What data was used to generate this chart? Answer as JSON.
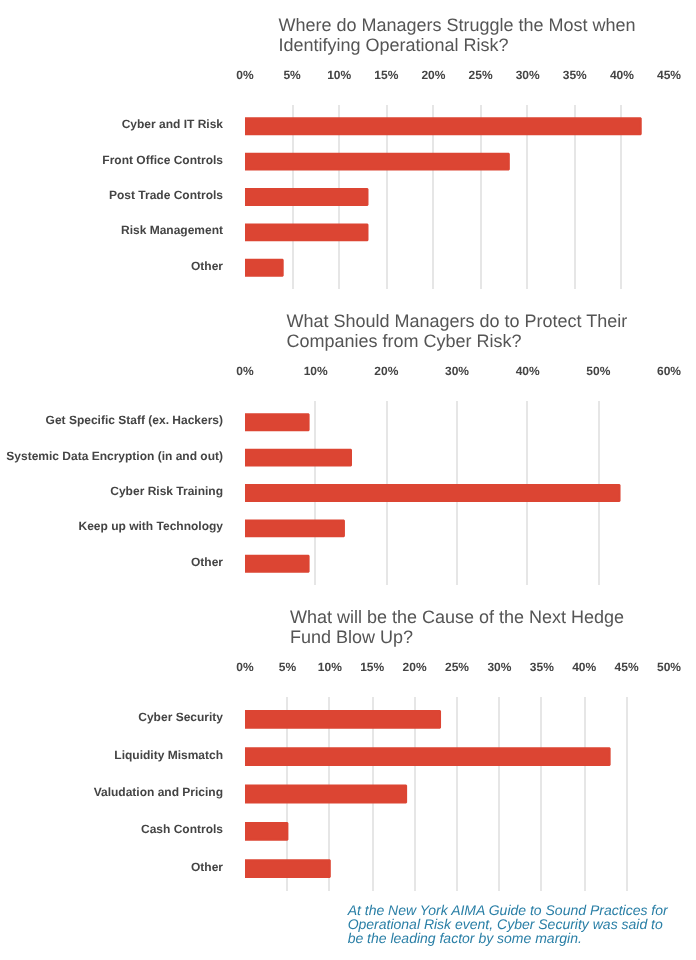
{
  "chart_data": [
    {
      "type": "bar",
      "orientation": "horizontal",
      "title": "Where do Managers Struggle the Most when Identifying Operational Risk?",
      "categories": [
        "Cyber and IT Risk",
        "Front Office Controls",
        "Post Trade Controls",
        "Risk Management",
        "Other"
      ],
      "values": [
        42,
        28,
        13,
        13,
        4
      ],
      "color": "#dc4533",
      "xlim": [
        0,
        45
      ],
      "xticks": [
        {
          "value": 0,
          "label": "0%"
        },
        {
          "value": 5,
          "label": "5%"
        },
        {
          "value": 10,
          "label": "10%"
        },
        {
          "value": 15,
          "label": "15%"
        },
        {
          "value": 20,
          "label": "20%"
        },
        {
          "value": 25,
          "label": "25%"
        },
        {
          "value": 30,
          "label": "30%"
        },
        {
          "value": 35,
          "label": "35%"
        },
        {
          "value": 40,
          "label": "40%"
        },
        {
          "value": 45,
          "label": "45%"
        }
      ],
      "grid": "x"
    },
    {
      "type": "bar",
      "orientation": "horizontal",
      "title": "What Should Managers do to Protect Their Companies from Cyber Risk?",
      "categories": [
        "Get Specific Staff (ex. Hackers)",
        "Systemic Data Encryption (in and out)",
        "Cyber Risk Training",
        "Keep up with Technology",
        "Other"
      ],
      "values": [
        9,
        15,
        53,
        14,
        9
      ],
      "color": "#dc4533",
      "xlim": [
        0,
        60
      ],
      "xticks": [
        {
          "value": 0,
          "label": "0%"
        },
        {
          "value": 10,
          "label": "10%"
        },
        {
          "value": 20,
          "label": "20%"
        },
        {
          "value": 30,
          "label": "30%"
        },
        {
          "value": 40,
          "label": "40%"
        },
        {
          "value": 50,
          "label": "50%"
        },
        {
          "value": 60,
          "label": "60%"
        }
      ],
      "grid": "x"
    },
    {
      "type": "bar",
      "orientation": "horizontal",
      "title": "What will be the Cause of the Next Hedge Fund Blow Up?",
      "categories": [
        "Cyber Security",
        "Liquidity Mismatch",
        "Valudation and Pricing",
        "Cash Controls",
        "Other"
      ],
      "values": [
        23,
        43,
        19,
        5,
        10
      ],
      "color": "#dc4533",
      "xlim": [
        0,
        50
      ],
      "xticks": [
        {
          "value": 0,
          "label": "0%"
        },
        {
          "value": 5,
          "label": "5%"
        },
        {
          "value": 10,
          "label": "10%"
        },
        {
          "value": 15,
          "label": "15%"
        },
        {
          "value": 20,
          "label": "20%"
        },
        {
          "value": 25,
          "label": "25%"
        },
        {
          "value": 30,
          "label": "30%"
        },
        {
          "value": 35,
          "label": "35%"
        },
        {
          "value": 40,
          "label": "40%"
        },
        {
          "value": 45,
          "label": "45%"
        },
        {
          "value": 50,
          "label": "50%"
        }
      ],
      "grid": "x",
      "annotations": [
        "At the New York AIMA Guide to Sound Practices for Operational Risk event, Cyber Security was said to be the leading factor by some margin."
      ]
    }
  ]
}
